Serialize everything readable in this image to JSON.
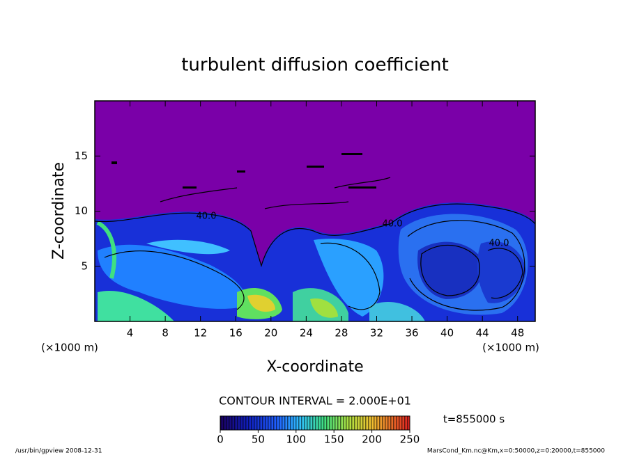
{
  "chart_data": {
    "type": "contour",
    "title": "turbulent diffusion coefficient",
    "xlabel": "X-coordinate",
    "ylabel": "Z-coordinate",
    "xunit": "(×1000 m)",
    "xlim": [
      0,
      50
    ],
    "ylim": [
      0,
      20
    ],
    "xticks": [
      4,
      8,
      12,
      16,
      20,
      24,
      28,
      32,
      36,
      40,
      44,
      48
    ],
    "yticks": [
      5,
      10,
      15
    ],
    "contour_labels": [
      "40.0",
      "40.0",
      "40.0"
    ],
    "contour_interval": "CONTOUR INTERVAL = 2.000E+01",
    "time_label": "t=855000 s",
    "colorbar": {
      "lim": [
        0,
        250
      ],
      "ticks": [
        0,
        50,
        100,
        150,
        200,
        250
      ]
    },
    "footer_left": "/usr/bin/gpview  2008-12-31",
    "footer_right": "MarsCond_Km.nc@Km,x=0:50000,z=0:20000,t=855000"
  }
}
